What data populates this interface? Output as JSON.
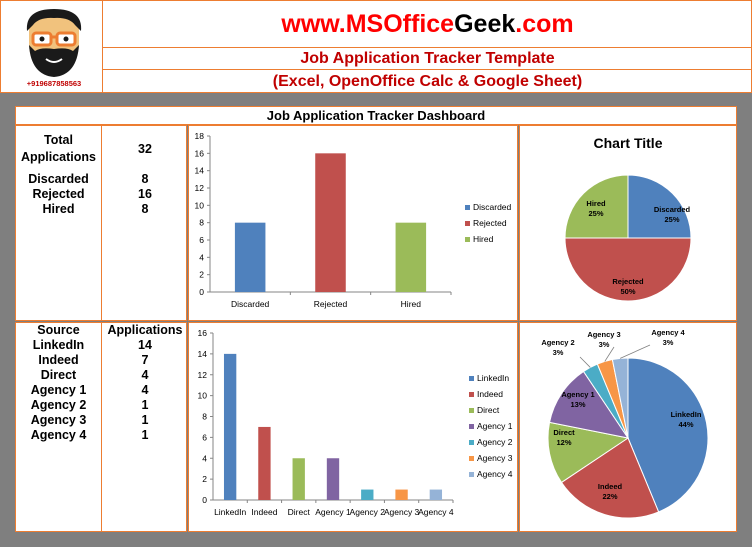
{
  "header": {
    "site_prefix": "www.MSOffice",
    "site_geek": "Geek",
    "site_suffix": ".com",
    "subtitle1": "Job Application Tracker Template",
    "subtitle2": "(Excel, OpenOffice Calc & Google Sheet)",
    "phone": "+919687858563",
    "logo_icon": "bearded-man-glasses-icon"
  },
  "dashboard_title": "Job Application Tracker Dashboard",
  "summary": {
    "total_label": "Total Applications",
    "total_value": "32",
    "rows": [
      {
        "label": "Discarded",
        "value": "8"
      },
      {
        "label": "Rejected",
        "value": "16"
      },
      {
        "label": "Hired",
        "value": "8"
      }
    ]
  },
  "sources": {
    "header_source": "Source",
    "header_apps": "Applications",
    "rows": [
      {
        "label": "LinkedIn",
        "value": "14"
      },
      {
        "label": "Indeed",
        "value": "7"
      },
      {
        "label": "Direct",
        "value": "4"
      },
      {
        "label": "Agency 1",
        "value": "4"
      },
      {
        "label": "Agency 2",
        "value": "1"
      },
      {
        "label": "Agency 3",
        "value": "1"
      },
      {
        "label": "Agency 4",
        "value": "1"
      }
    ]
  },
  "chart_data": [
    {
      "type": "bar",
      "categories": [
        "Discarded",
        "Rejected",
        "Hired"
      ],
      "values": [
        8,
        16,
        8
      ],
      "colors": [
        "#4f81bd",
        "#c0504d",
        "#9bbb59"
      ],
      "legend": [
        "Discarded",
        "Rejected",
        "Hired"
      ],
      "ylim": [
        0,
        18
      ],
      "yticks": [
        0,
        2,
        4,
        6,
        8,
        10,
        12,
        14,
        16,
        18
      ],
      "legend_position": "right"
    },
    {
      "type": "pie",
      "title": "Chart Title",
      "labels": [
        "Discarded",
        "Rejected",
        "Hired"
      ],
      "values": [
        8,
        16,
        8
      ],
      "percent_labels": [
        "25%",
        "50%",
        "25%"
      ],
      "colors": [
        "#4f81bd",
        "#c0504d",
        "#9bbb59"
      ]
    },
    {
      "type": "bar",
      "categories": [
        "LinkedIn",
        "Indeed",
        "Direct",
        "Agency 1",
        "Agency 2",
        "Agency 3",
        "Agency 4"
      ],
      "values": [
        14,
        7,
        4,
        4,
        1,
        1,
        1
      ],
      "colors": [
        "#4f81bd",
        "#c0504d",
        "#9bbb59",
        "#8064a2",
        "#4bacc6",
        "#f79646",
        "#95b3d7"
      ],
      "legend": [
        "LinkedIn",
        "Indeed",
        "Direct",
        "Agency 1",
        "Agency 2",
        "Agency 3",
        "Agency 4"
      ],
      "ylim": [
        0,
        16
      ],
      "yticks": [
        0,
        2,
        4,
        6,
        8,
        10,
        12,
        14,
        16
      ],
      "legend_position": "right"
    },
    {
      "type": "pie",
      "labels": [
        "LinkedIn",
        "Indeed",
        "Direct",
        "Agency 1",
        "Agency 2",
        "Agency 3",
        "Agency 4"
      ],
      "values": [
        14,
        7,
        4,
        4,
        1,
        1,
        1
      ],
      "percent_labels": [
        "44%",
        "22%",
        "12%",
        "13%",
        "3%",
        "3%",
        "3%"
      ],
      "colors": [
        "#4f81bd",
        "#c0504d",
        "#9bbb59",
        "#8064a2",
        "#4bacc6",
        "#f79646",
        "#95b3d7"
      ]
    }
  ]
}
